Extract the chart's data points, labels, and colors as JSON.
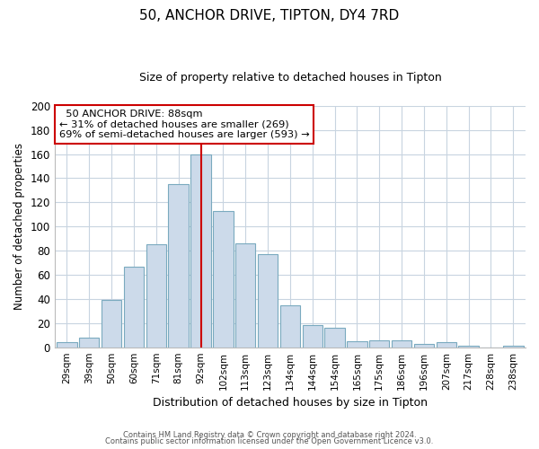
{
  "title": "50, ANCHOR DRIVE, TIPTON, DY4 7RD",
  "subtitle": "Size of property relative to detached houses in Tipton",
  "xlabel": "Distribution of detached houses by size in Tipton",
  "ylabel": "Number of detached properties",
  "categories": [
    "29sqm",
    "39sqm",
    "50sqm",
    "60sqm",
    "71sqm",
    "81sqm",
    "92sqm",
    "102sqm",
    "113sqm",
    "123sqm",
    "134sqm",
    "144sqm",
    "154sqm",
    "165sqm",
    "175sqm",
    "186sqm",
    "196sqm",
    "207sqm",
    "217sqm",
    "228sqm",
    "238sqm"
  ],
  "values": [
    4,
    8,
    39,
    67,
    85,
    135,
    160,
    113,
    86,
    77,
    35,
    18,
    16,
    5,
    6,
    6,
    3,
    4,
    1,
    0,
    1
  ],
  "bar_color": "#ccdaea",
  "bar_edge_color": "#7aaabf",
  "vline_x": 6.0,
  "vline_color": "#cc0000",
  "ylim": [
    0,
    200
  ],
  "yticks": [
    0,
    20,
    40,
    60,
    80,
    100,
    120,
    140,
    160,
    180,
    200
  ],
  "annotation_line1": "  50 ANCHOR DRIVE: 88sqm",
  "annotation_line2": "← 31% of detached houses are smaller (269)",
  "annotation_line3": "69% of semi-detached houses are larger (593) →",
  "annotation_box_color": "#ffffff",
  "annotation_box_edge": "#cc0000",
  "footer1": "Contains HM Land Registry data © Crown copyright and database right 2024.",
  "footer2": "Contains public sector information licensed under the Open Government Licence v3.0.",
  "background_color": "#ffffff",
  "grid_color": "#c8d4e0"
}
